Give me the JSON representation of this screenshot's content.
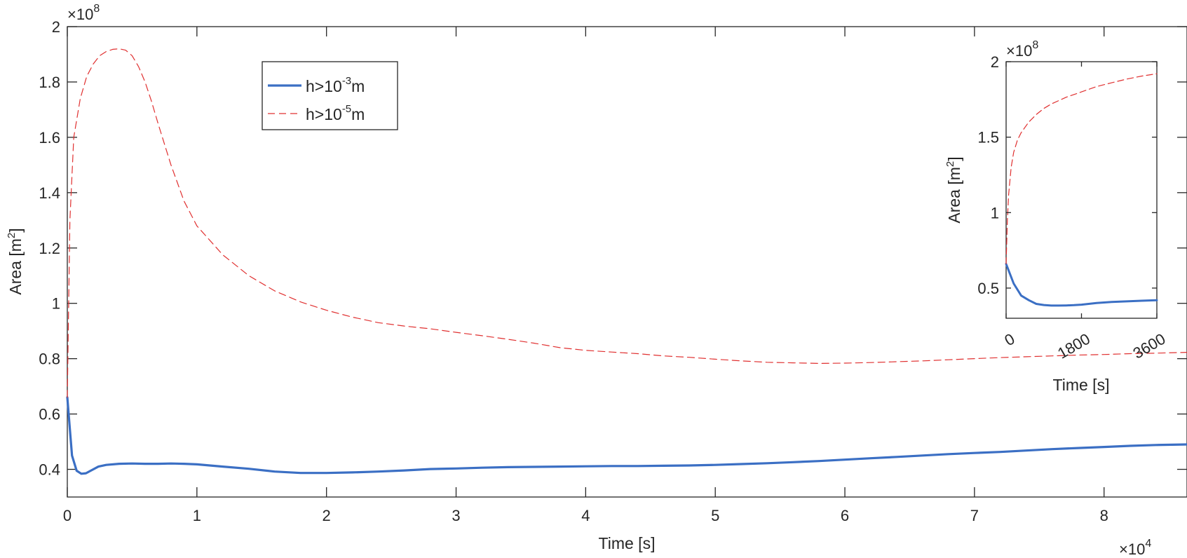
{
  "chart_data": [
    {
      "type": "line",
      "panel": "main",
      "xlabel": "Time [s]",
      "ylabel": "Area [m",
      "ylabel_sup": "2",
      "ylabel_end": "]",
      "x_exponent": "10",
      "x_exponent_power": "4",
      "y_exponent": "10",
      "y_exponent_power": "8",
      "xlim": [
        0,
        86400
      ],
      "ylim": [
        30000000,
        200000000
      ],
      "xticks": [
        0,
        10000,
        20000,
        30000,
        40000,
        50000,
        60000,
        70000,
        80000
      ],
      "xtick_labels": [
        "0",
        "1",
        "2",
        "3",
        "4",
        "5",
        "6",
        "7",
        "8"
      ],
      "yticks": [
        40000000,
        60000000,
        80000000,
        100000000,
        120000000,
        140000000,
        160000000,
        180000000,
        200000000
      ],
      "ytick_labels": [
        "0.4",
        "0.6",
        "0.8",
        "1",
        "1.2",
        "1.4",
        "1.6",
        "1.8",
        "2"
      ],
      "legend_placement": "top-left-inside",
      "series": [
        {
          "name": "h>10",
          "name_sup": "-3",
          "name_end": "m",
          "color": "#3b6fc4",
          "style": "solid",
          "x": [
            0,
            360,
            720,
            1080,
            1440,
            1800,
            2400,
            3000,
            4000,
            5000,
            6000,
            7000,
            8000,
            9000,
            10000,
            12000,
            14000,
            16000,
            18000,
            20000,
            22000,
            24000,
            26000,
            28000,
            30000,
            32000,
            34000,
            36000,
            38000,
            40000,
            42000,
            44000,
            46000,
            48000,
            50000,
            52000,
            54000,
            56000,
            58000,
            60000,
            62000,
            64000,
            66000,
            68000,
            70000,
            72000,
            74000,
            76000,
            78000,
            80000,
            82000,
            84000,
            86400
          ],
          "y": [
            66000000,
            45000000,
            39500000,
            38400000,
            38600000,
            39500000,
            41000000,
            41600000,
            42000000,
            42100000,
            42000000,
            42000000,
            42100000,
            42000000,
            41800000,
            41000000,
            40200000,
            39200000,
            38700000,
            38700000,
            38900000,
            39200000,
            39600000,
            40100000,
            40300000,
            40600000,
            40800000,
            40900000,
            41000000,
            41100000,
            41200000,
            41200000,
            41300000,
            41400000,
            41600000,
            41900000,
            42200000,
            42600000,
            43000000,
            43500000,
            44000000,
            44500000,
            45000000,
            45500000,
            45900000,
            46300000,
            46800000,
            47300000,
            47700000,
            48100000,
            48500000,
            48800000,
            49000000
          ]
        },
        {
          "name": "h>10",
          "name_sup": "-5",
          "name_end": "m",
          "color": "#e03030",
          "style": "dashed",
          "x": [
            0,
            200,
            500,
            1000,
            1500,
            2000,
            2500,
            3000,
            3500,
            4000,
            4500,
            5000,
            5500,
            6000,
            6500,
            7000,
            8000,
            9000,
            10000,
            12000,
            14000,
            16000,
            18000,
            20000,
            22000,
            24000,
            26000,
            28000,
            30000,
            32000,
            34000,
            36000,
            38000,
            40000,
            42000,
            44000,
            46000,
            48000,
            50000,
            52000,
            54000,
            56000,
            58000,
            60000,
            62000,
            64000,
            66000,
            68000,
            70000,
            72000,
            74000,
            76000,
            78000,
            80000,
            82000,
            84000,
            86400
          ],
          "y": [
            66000000,
            130000000,
            160000000,
            174000000,
            182000000,
            186500000,
            189500000,
            191000000,
            191800000,
            192000000,
            191500000,
            189500000,
            185500000,
            180000000,
            173000000,
            165000000,
            150000000,
            137000000,
            128000000,
            117500000,
            110000000,
            104500000,
            100500000,
            97500000,
            95000000,
            93000000,
            91800000,
            90800000,
            89500000,
            88300000,
            87000000,
            85600000,
            84000000,
            83000000,
            82400000,
            81800000,
            81000000,
            80500000,
            79800000,
            79200000,
            78700000,
            78500000,
            78300000,
            78400000,
            78600000,
            78900000,
            79200000,
            79600000,
            80000000,
            80400000,
            80700000,
            81000000,
            81300000,
            81500000,
            81800000,
            82000000,
            82300000
          ]
        }
      ]
    },
    {
      "type": "line",
      "panel": "inset",
      "xlabel": "Time [s]",
      "ylabel": "Area [m",
      "ylabel_sup": "2",
      "ylabel_end": "]",
      "y_exponent": "10",
      "y_exponent_power": "8",
      "xlim": [
        0,
        3600
      ],
      "ylim": [
        30000000,
        200000000
      ],
      "xticks": [
        0,
        1800,
        3600
      ],
      "xtick_labels": [
        "0",
        "1800",
        "3600"
      ],
      "yticks": [
        50000000,
        100000000,
        150000000,
        200000000
      ],
      "ytick_labels": [
        "0.5",
        "1",
        "1.5",
        "2"
      ],
      "series": [
        {
          "color": "#3b6fc4",
          "style": "solid",
          "x": [
            0,
            180,
            360,
            540,
            720,
            900,
            1080,
            1260,
            1440,
            1620,
            1800,
            2160,
            2520,
            2880,
            3240,
            3600
          ],
          "y": [
            66000000,
            53000000,
            45000000,
            42000000,
            39500000,
            38800000,
            38400000,
            38400000,
            38500000,
            38700000,
            39000000,
            40100000,
            40800000,
            41200000,
            41600000,
            42000000
          ]
        },
        {
          "color": "#e03030",
          "style": "dashed",
          "x": [
            0,
            30,
            60,
            120,
            180,
            270,
            360,
            540,
            720,
            900,
            1080,
            1440,
            1800,
            2160,
            2520,
            2880,
            3240,
            3600
          ],
          "y": [
            66000000,
            95000000,
            112000000,
            130000000,
            140000000,
            148000000,
            153000000,
            160000000,
            165000000,
            169000000,
            172000000,
            176500000,
            180000000,
            183500000,
            186000000,
            188500000,
            190500000,
            192000000
          ]
        }
      ]
    }
  ]
}
